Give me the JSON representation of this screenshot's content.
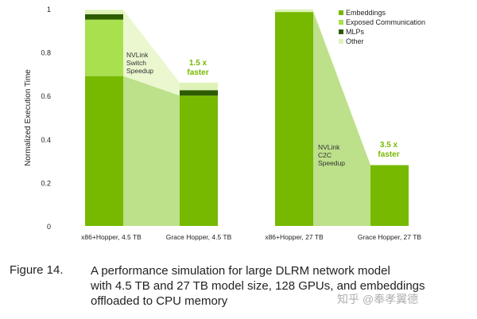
{
  "chart_data": {
    "type": "bar",
    "stacked": true,
    "ylabel": "Normalized Execution Time",
    "ylim": [
      0,
      1
    ],
    "yticks": [
      0,
      0.2,
      0.4,
      0.6,
      0.8,
      1
    ],
    "ytick_labels": [
      "0",
      "0.2",
      "0.4",
      "0.6",
      "0.8",
      "1"
    ],
    "categories": [
      "x86+Hopper, 4.5 TB",
      "Grace Hopper, 4.5 TB",
      "x86+Hopper, 27 TB",
      "Grace Hopper, 27 TB"
    ],
    "series": [
      {
        "name": "Embeddings",
        "color": "#76b900",
        "values": [
          0.69,
          0.6,
          0.985,
          0.28
        ]
      },
      {
        "name": "Exposed Communication",
        "color": "#a8e04e",
        "values": [
          0.26,
          0.0,
          0.0,
          0.0
        ]
      },
      {
        "name": "MLPs",
        "color": "#2d5c00",
        "values": [
          0.025,
          0.025,
          0.0,
          0.0
        ]
      },
      {
        "name": "Other",
        "color": "#dff3b8",
        "values": [
          0.02,
          0.035,
          0.012,
          0.0
        ]
      }
    ],
    "legend_position": "top-right",
    "annotations": [
      {
        "text_lines": [
          "NVLink",
          "Switch",
          "Speedup"
        ],
        "group": 0
      },
      {
        "text_lines": [
          "1.5 x",
          "faster"
        ],
        "group": 0,
        "highlight": true
      },
      {
        "text_lines": [
          "NVLink",
          "C2C",
          "Speedup"
        ],
        "group": 1
      },
      {
        "text_lines": [
          "3.5 x",
          "faster"
        ],
        "group": 1,
        "highlight": true
      }
    ]
  },
  "caption": {
    "label": "Figure 14.",
    "lines": [
      "A performance simulation for large DLRM network model",
      "with 4.5 TB and 27 TB model size, 128 GPUs, and embeddings",
      "offloaded to CPU memory"
    ]
  },
  "watermark": "知乎 @奉孝翼德"
}
